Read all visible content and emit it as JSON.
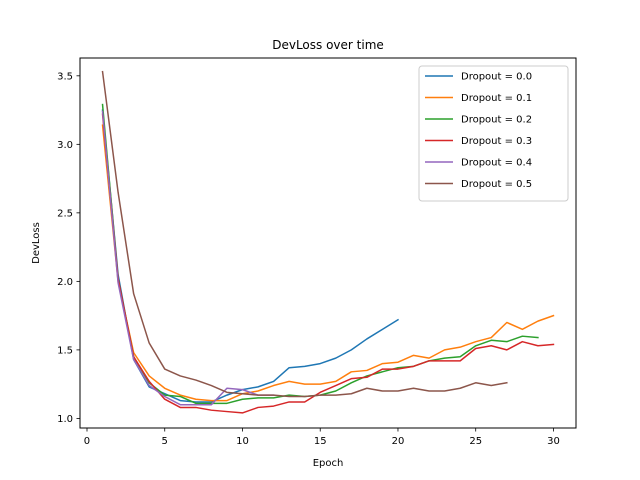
{
  "chart_data": {
    "type": "line",
    "title": "DevLoss over time",
    "xlabel": "Epoch",
    "ylabel": "DevLoss",
    "xlim": [
      -0.45,
      31.45
    ],
    "ylim": [
      0.93,
      3.63
    ],
    "xticks": [
      0,
      5,
      10,
      15,
      20,
      25,
      30
    ],
    "xtick_labels": [
      "0",
      "5",
      "10",
      "15",
      "20",
      "25",
      "30"
    ],
    "yticks": [
      1.0,
      1.5,
      2.0,
      2.5,
      3.0,
      3.5
    ],
    "ytick_labels": [
      "1.0",
      "1.5",
      "2.0",
      "2.5",
      "3.0",
      "3.5"
    ],
    "grid": false,
    "legend_position": "top-right",
    "series": [
      {
        "name": "Dropout = 0.0",
        "color": "#1f77b4",
        "x": [
          1,
          2,
          3,
          4,
          5,
          6,
          7,
          8,
          9,
          10,
          11,
          12,
          13,
          14,
          15,
          16,
          17,
          18,
          19,
          20
        ],
        "y": [
          3.25,
          2.05,
          1.43,
          1.23,
          1.18,
          1.13,
          1.12,
          1.12,
          1.17,
          1.21,
          1.23,
          1.27,
          1.37,
          1.38,
          1.4,
          1.44,
          1.5,
          1.58,
          1.65,
          1.72
        ]
      },
      {
        "name": "Dropout = 0.1",
        "color": "#ff7f0e",
        "x": [
          1,
          2,
          3,
          4,
          5,
          6,
          7,
          8,
          9,
          10,
          11,
          12,
          13,
          14,
          15,
          16,
          17,
          18,
          19,
          20,
          21,
          22,
          23,
          24,
          25,
          26,
          27,
          28,
          29,
          30
        ],
        "y": [
          3.14,
          2.0,
          1.48,
          1.31,
          1.22,
          1.17,
          1.14,
          1.13,
          1.13,
          1.18,
          1.2,
          1.24,
          1.27,
          1.25,
          1.25,
          1.27,
          1.34,
          1.35,
          1.4,
          1.41,
          1.46,
          1.44,
          1.5,
          1.52,
          1.56,
          1.59,
          1.7,
          1.65,
          1.71,
          1.75
        ]
      },
      {
        "name": "Dropout = 0.2",
        "color": "#2ca02c",
        "x": [
          1,
          2,
          3,
          4,
          5,
          6,
          7,
          8,
          9,
          10,
          11,
          12,
          13,
          14,
          15,
          16,
          17,
          18,
          19,
          20,
          21,
          22,
          23,
          24,
          25,
          26,
          27,
          28,
          29
        ],
        "y": [
          3.29,
          2.02,
          1.45,
          1.26,
          1.17,
          1.16,
          1.11,
          1.11,
          1.11,
          1.14,
          1.15,
          1.15,
          1.17,
          1.16,
          1.17,
          1.2,
          1.26,
          1.31,
          1.34,
          1.37,
          1.38,
          1.42,
          1.44,
          1.45,
          1.53,
          1.57,
          1.56,
          1.6,
          1.59
        ]
      },
      {
        "name": "Dropout = 0.3",
        "color": "#d62728",
        "x": [
          1,
          2,
          3,
          4,
          5,
          6,
          7,
          8,
          9,
          10,
          11,
          12,
          13,
          14,
          15,
          16,
          17,
          18,
          19,
          20,
          21,
          22,
          23,
          24,
          25,
          26,
          27,
          28,
          29,
          30
        ],
        "y": [
          3.22,
          2.02,
          1.45,
          1.27,
          1.14,
          1.08,
          1.08,
          1.06,
          1.05,
          1.04,
          1.08,
          1.09,
          1.12,
          1.12,
          1.19,
          1.24,
          1.29,
          1.3,
          1.36,
          1.36,
          1.38,
          1.42,
          1.42,
          1.42,
          1.51,
          1.53,
          1.5,
          1.56,
          1.53,
          1.54
        ]
      },
      {
        "name": "Dropout = 0.4",
        "color": "#9467bd",
        "x": [
          1,
          2,
          3,
          4,
          5,
          6,
          7,
          8,
          9,
          10,
          11,
          12
        ],
        "y": [
          3.24,
          1.99,
          1.43,
          1.24,
          1.16,
          1.1,
          1.1,
          1.1,
          1.22,
          1.21,
          1.17,
          1.17
        ]
      },
      {
        "name": "Dropout = 0.5",
        "color": "#8c564b",
        "x": [
          1,
          2,
          3,
          4,
          5,
          6,
          7,
          8,
          9,
          10,
          11,
          12,
          13,
          14,
          15,
          16,
          17,
          18,
          19,
          20,
          21,
          22,
          23,
          24,
          25,
          26,
          27
        ],
        "y": [
          3.53,
          2.65,
          1.91,
          1.55,
          1.36,
          1.31,
          1.28,
          1.24,
          1.19,
          1.18,
          1.17,
          1.17,
          1.16,
          1.16,
          1.17,
          1.17,
          1.18,
          1.22,
          1.2,
          1.2,
          1.22,
          1.2,
          1.2,
          1.22,
          1.26,
          1.24,
          1.26
        ]
      }
    ]
  }
}
